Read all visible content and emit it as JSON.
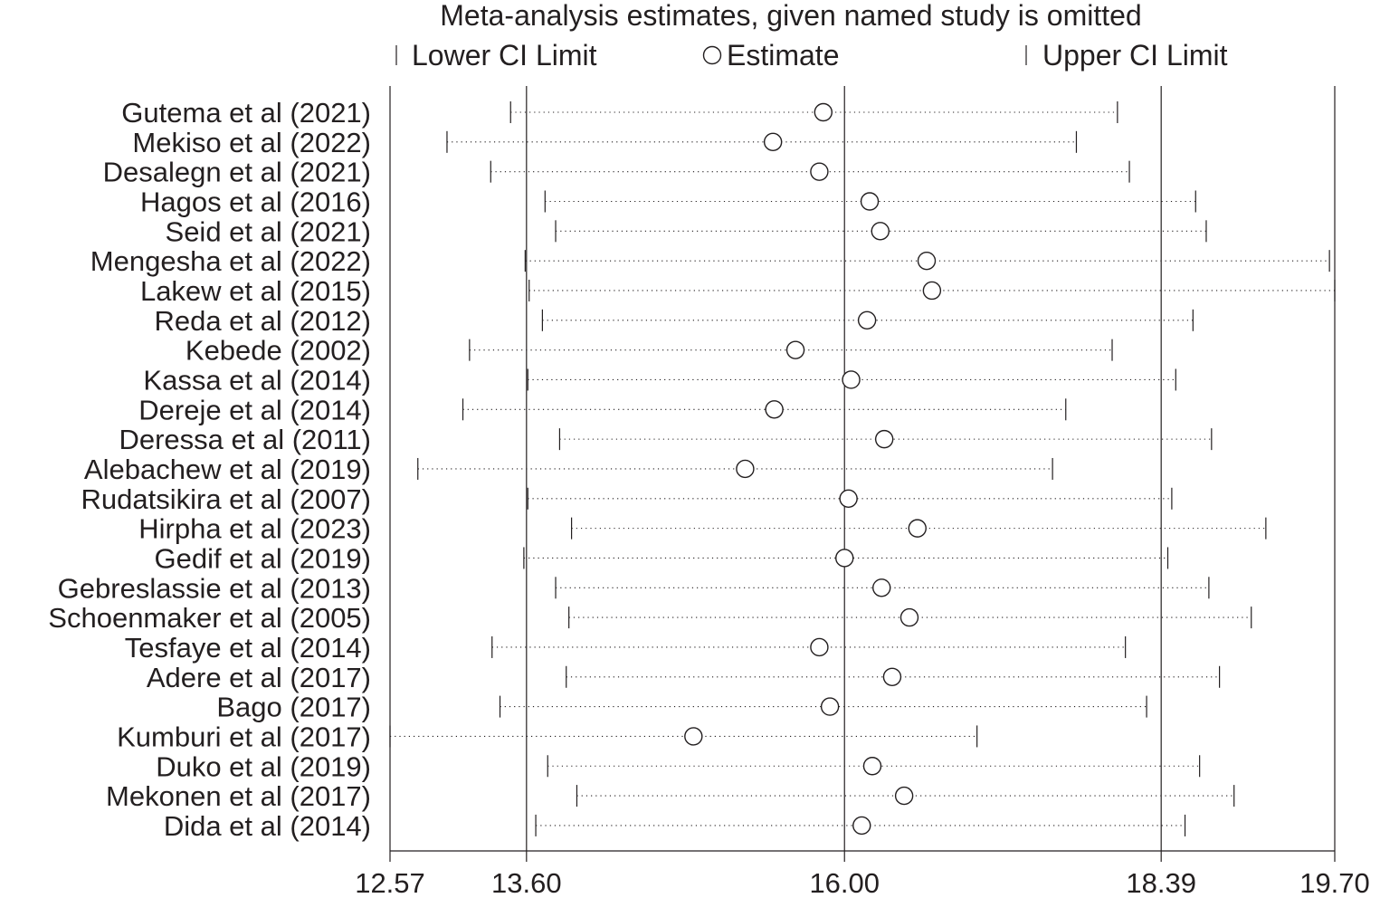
{
  "chart_data": {
    "type": "forest",
    "title": "Meta-analysis estimates, given named study is omitted",
    "legend": {
      "placement": "top",
      "entries": [
        {
          "label": "Lower CI Limit",
          "marker": "tick"
        },
        {
          "label": "Estimate",
          "marker": "circle"
        },
        {
          "label": "Upper CI Limit",
          "marker": "tick"
        }
      ]
    },
    "x_ticks": [
      {
        "value": 12.57,
        "label": "12.57"
      },
      {
        "value": 13.6,
        "label": "13.60"
      },
      {
        "value": 16.0,
        "label": "16.00"
      },
      {
        "value": 18.39,
        "label": "18.39"
      },
      {
        "value": 19.7,
        "label": "19.70"
      }
    ],
    "xlim": [
      12.57,
      19.7
    ],
    "reference_lines": [
      13.6,
      16.0,
      18.39
    ],
    "studies": [
      {
        "label": "Gutema et al (2021)",
        "lower": 13.48,
        "estimate": 15.84,
        "upper": 18.06
      },
      {
        "label": "Mekiso et al (2022)",
        "lower": 13.0,
        "estimate": 15.46,
        "upper": 17.75
      },
      {
        "label": "Desalegn et al (2021)",
        "lower": 13.33,
        "estimate": 15.81,
        "upper": 18.15
      },
      {
        "label": "Hagos et al (2016)",
        "lower": 13.74,
        "estimate": 16.19,
        "upper": 18.65
      },
      {
        "label": "Seid et al (2021)",
        "lower": 13.82,
        "estimate": 16.27,
        "upper": 18.73
      },
      {
        "label": "Mengesha et al (2022)",
        "lower": 13.59,
        "estimate": 16.62,
        "upper": 19.66
      },
      {
        "label": "Lakew et al (2015)",
        "lower": 13.62,
        "estimate": 16.66,
        "upper": 19.7
      },
      {
        "label": "Reda et al (2012)",
        "lower": 13.72,
        "estimate": 16.17,
        "upper": 18.63
      },
      {
        "label": "Kebede (2002)",
        "lower": 13.17,
        "estimate": 15.63,
        "upper": 18.02
      },
      {
        "label": "Kassa et al  (2014)",
        "lower": 13.61,
        "estimate": 16.05,
        "upper": 18.5
      },
      {
        "label": "Dereje et al (2014)",
        "lower": 13.12,
        "estimate": 15.47,
        "upper": 17.67
      },
      {
        "label": "Deressa et al (2011)",
        "lower": 13.85,
        "estimate": 16.3,
        "upper": 18.77
      },
      {
        "label": "Alebachew et al (2019)",
        "lower": 12.78,
        "estimate": 15.25,
        "upper": 17.57
      },
      {
        "label": "Rudatsikira et al (2007)",
        "lower": 13.61,
        "estimate": 16.03,
        "upper": 18.47
      },
      {
        "label": "Hirpha et al  (2023)",
        "lower": 13.94,
        "estimate": 16.55,
        "upper": 19.18
      },
      {
        "label": "Gedif et al (2019)",
        "lower": 13.58,
        "estimate": 16.0,
        "upper": 18.44
      },
      {
        "label": "Gebreslassie et al (2013)",
        "lower": 13.82,
        "estimate": 16.28,
        "upper": 18.75
      },
      {
        "label": "Schoenmaker et al (2005)",
        "lower": 13.92,
        "estimate": 16.49,
        "upper": 19.07
      },
      {
        "label": "Tesfaye et al  (2014)",
        "lower": 13.34,
        "estimate": 15.81,
        "upper": 18.12
      },
      {
        "label": "Adere et al  (2017)",
        "lower": 13.9,
        "estimate": 16.36,
        "upper": 18.83
      },
      {
        "label": "Bago  (2017)",
        "lower": 13.4,
        "estimate": 15.89,
        "upper": 18.28
      },
      {
        "label": "Kumburi et al  (2017)",
        "lower": 12.57,
        "estimate": 14.86,
        "upper": 17.0
      },
      {
        "label": "Duko et al  (2019)",
        "lower": 13.76,
        "estimate": 16.21,
        "upper": 18.68
      },
      {
        "label": "Mekonen et al (2017)",
        "lower": 13.98,
        "estimate": 16.45,
        "upper": 18.94
      },
      {
        "label": "Dida et al (2014)",
        "lower": 13.67,
        "estimate": 16.13,
        "upper": 18.57
      }
    ]
  }
}
